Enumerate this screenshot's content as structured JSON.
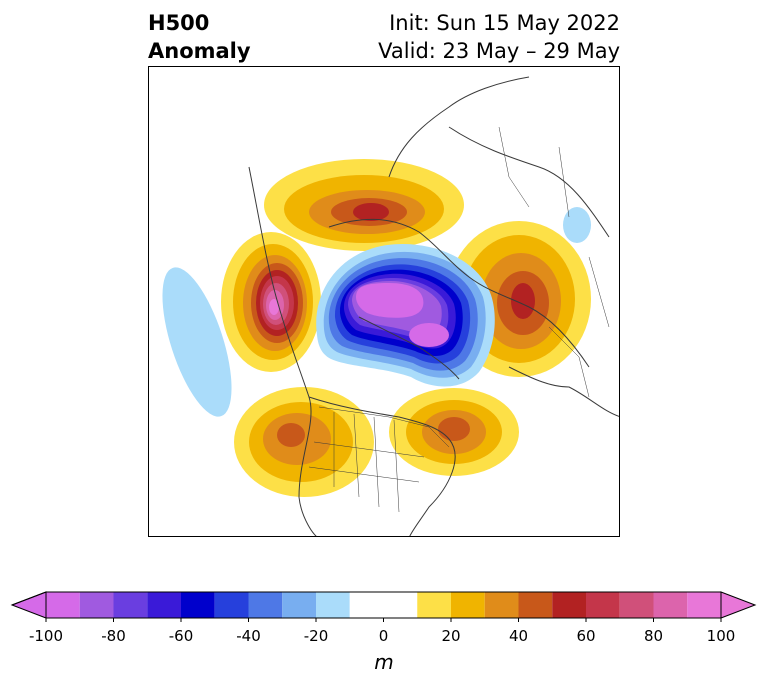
{
  "header": {
    "variable": "H500",
    "product": "Anomaly",
    "init": "Init: Sun 15 May 2022",
    "valid": "Valid: 23 May – 29 May"
  },
  "map": {
    "projection": "north polar stereographic",
    "region": "Northern Hemisphere",
    "features": [
      {
        "name": "negative-anomaly-center-arctic",
        "value_min": -100,
        "color": "#d56ae8"
      },
      {
        "name": "positive-anomaly-alaska-pacific",
        "value_max": 100,
        "color": "#e877d8"
      },
      {
        "name": "positive-anomaly-siberia",
        "value_max": 60,
        "color": "#b22222"
      },
      {
        "name": "positive-anomaly-europe",
        "value_max": 60,
        "color": "#b22222"
      },
      {
        "name": "positive-anomaly-eastern-canada",
        "value_max": 50,
        "color": "#c8581a"
      },
      {
        "name": "positive-anomaly-western-us",
        "value_max": 40,
        "color": "#e08c1a"
      },
      {
        "name": "negative-anomaly-pacific",
        "value_min": -20,
        "color": "#aadcfa"
      },
      {
        "name": "negative-anomaly-central-asia",
        "value_min": -20,
        "color": "#aadcfa"
      }
    ]
  },
  "colorbar": {
    "unit": "m",
    "ticks": [
      "-100",
      "-80",
      "-60",
      "-40",
      "-20",
      "0",
      "20",
      "40",
      "60",
      "80",
      "100"
    ],
    "bins": [
      -100,
      -90,
      -80,
      -70,
      -60,
      -50,
      -40,
      -30,
      -20,
      -10,
      10,
      20,
      30,
      40,
      50,
      60,
      70,
      80,
      90,
      100
    ],
    "colors": [
      "#d56ae8",
      "#a05ae0",
      "#6a3ee0",
      "#3a1ad8",
      "#0000cc",
      "#2640dc",
      "#4e78e6",
      "#78aef0",
      "#aadcfa",
      "#ffffff",
      "#fde047",
      "#f0b400",
      "#e08c1a",
      "#c8581a",
      "#b22222",
      "#c4364a",
      "#d0507a",
      "#dc64ac",
      "#e877d8"
    ],
    "extend_low_color": "#d56ae8",
    "extend_high_color": "#e877d8"
  }
}
